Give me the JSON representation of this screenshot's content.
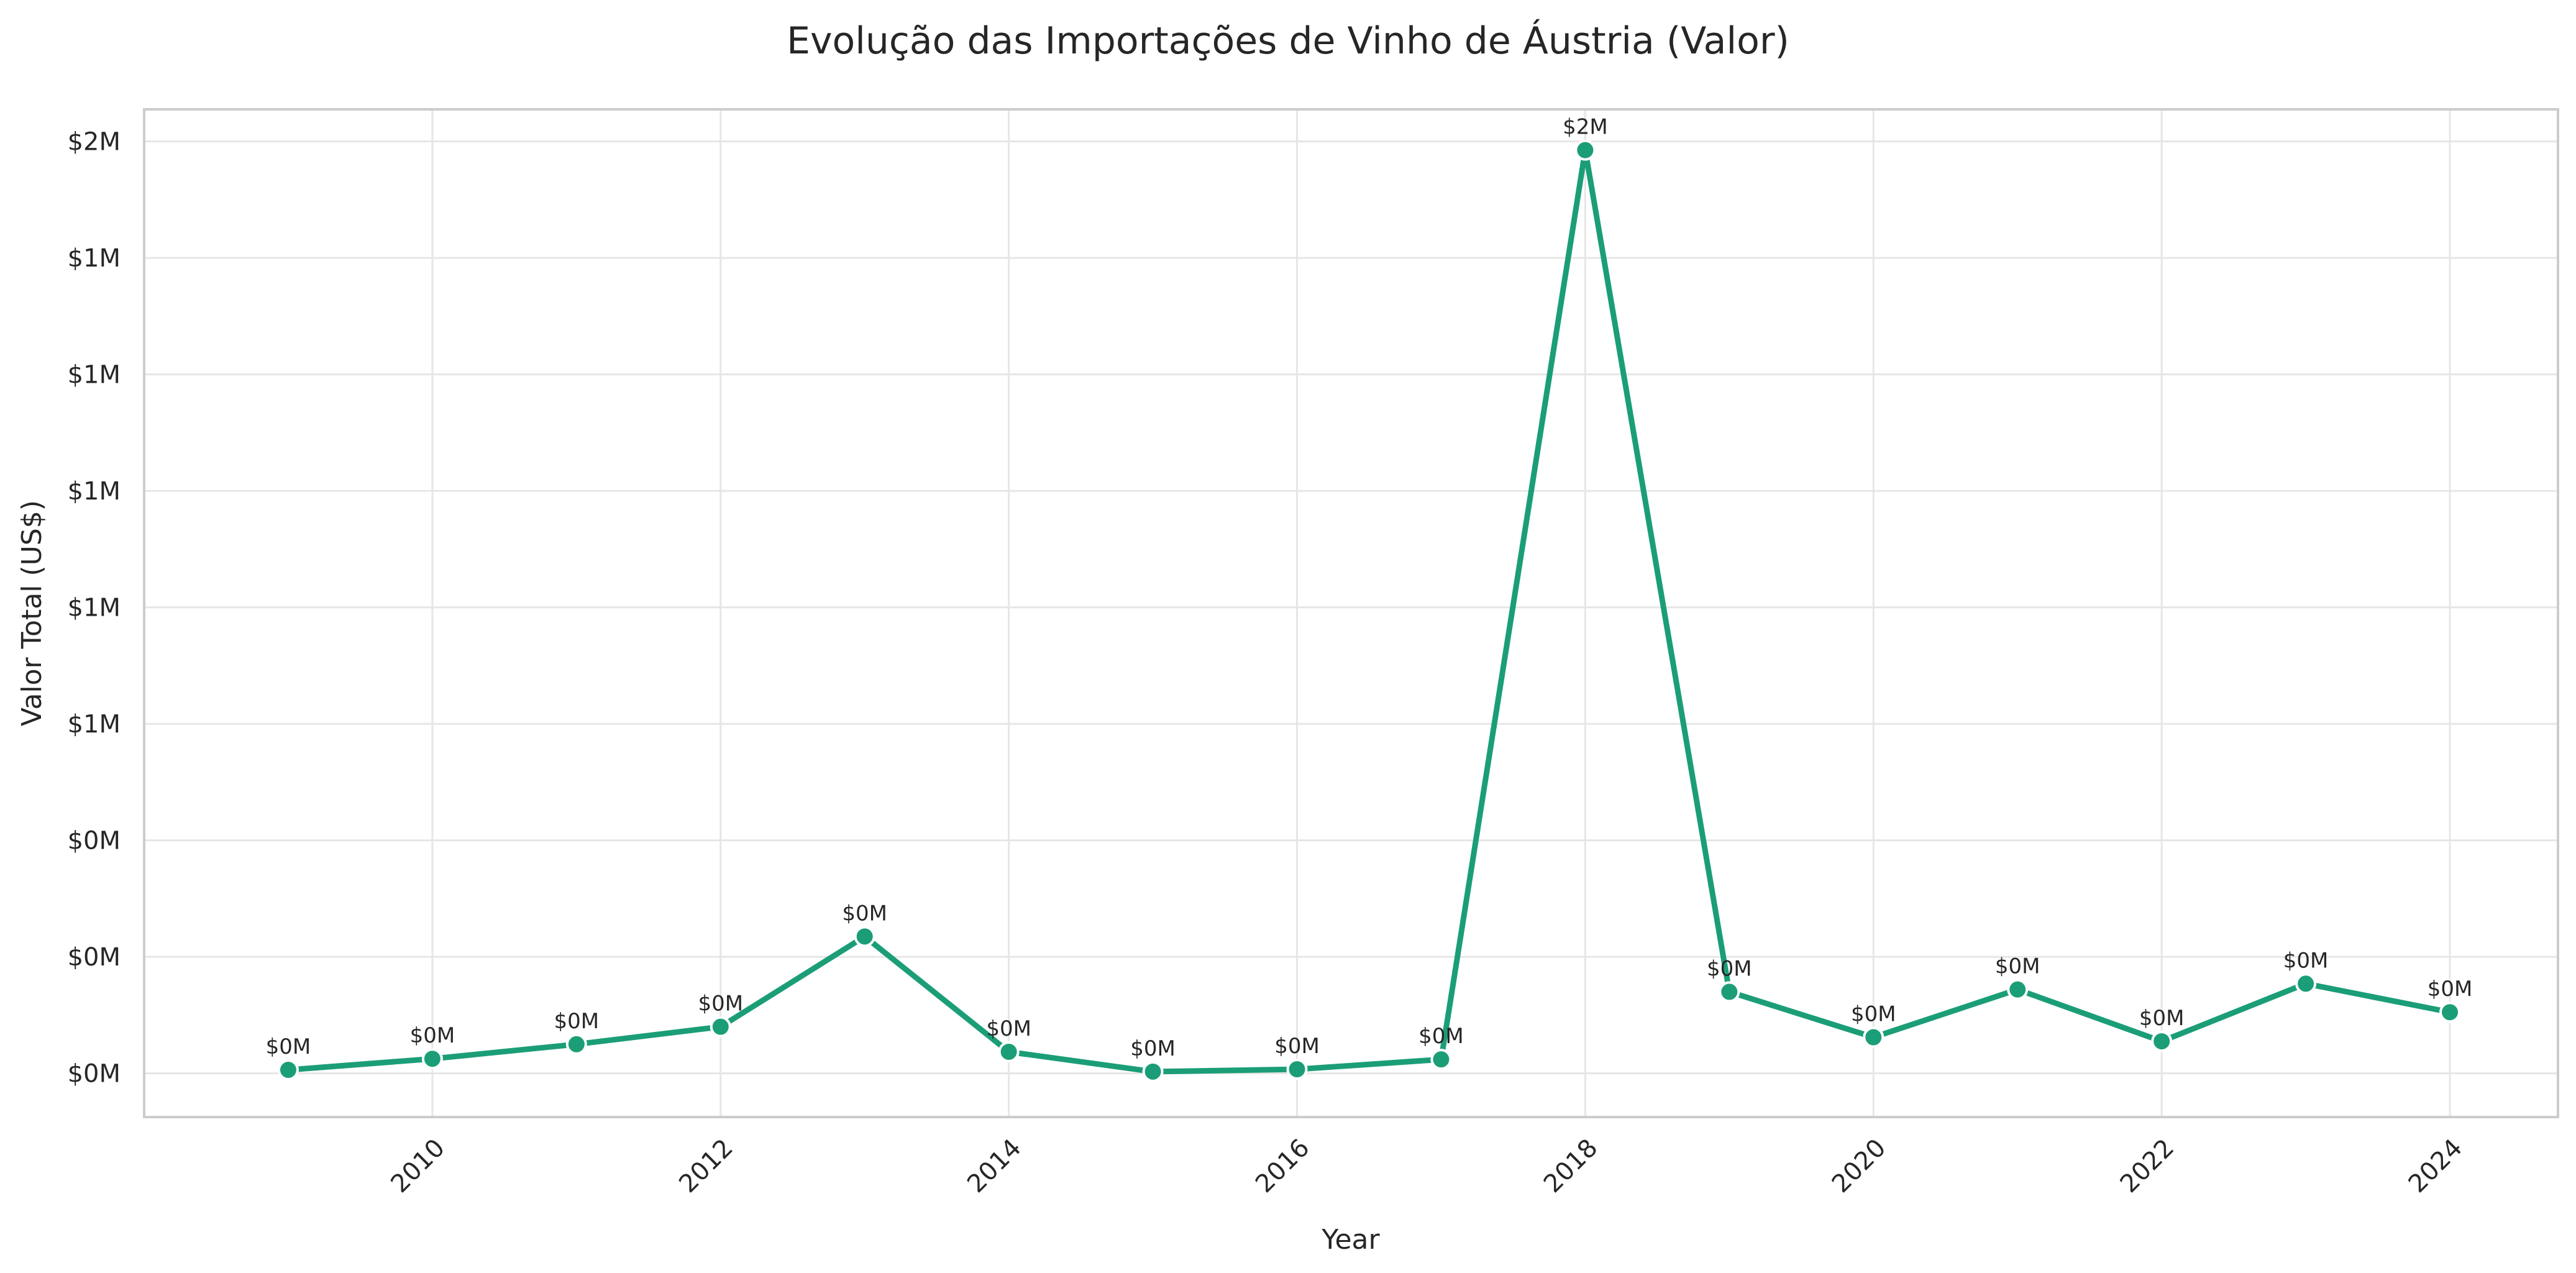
{
  "chart_data": {
    "type": "line",
    "title": "Evolução das Importações de Vinho de Áustria (Valor)",
    "xlabel": "Year",
    "ylabel": "Valor Total (US$)",
    "x": [
      2009,
      2010,
      2011,
      2012,
      2013,
      2014,
      2015,
      2016,
      2017,
      2018,
      2019,
      2020,
      2021,
      2022,
      2023,
      2024
    ],
    "series": [
      {
        "values": [
          6000,
          25000,
          50000,
          80000,
          235000,
          37000,
          3000,
          7000,
          24000,
          1585000,
          140000,
          62000,
          144000,
          55000,
          154000,
          105000
        ],
        "point_labels": [
          "$0M",
          "$0M",
          "$0M",
          "$0M",
          "$0M",
          "$0M",
          "$0M",
          "$0M",
          "$0M",
          "$2M",
          "$0M",
          "$0M",
          "$0M",
          "$0M",
          "$0M",
          "$0M"
        ]
      }
    ],
    "x_ticks": [
      2010,
      2012,
      2014,
      2016,
      2018,
      2020,
      2022,
      2024
    ],
    "y_ticks": [
      0,
      200000,
      400000,
      600000,
      800000,
      1000000,
      1200000,
      1400000,
      1600000
    ],
    "y_tick_labels": [
      "$0M",
      "$0M",
      "$0M",
      "$1M",
      "$1M",
      "$1M",
      "$1M",
      "$1M",
      "$2M"
    ],
    "xlim": [
      2008.0,
      2024.75
    ],
    "ylim": [
      -75000,
      1655000
    ],
    "grid": true,
    "line_color": "#1b9e77",
    "marker_color": "#1b9e77"
  }
}
